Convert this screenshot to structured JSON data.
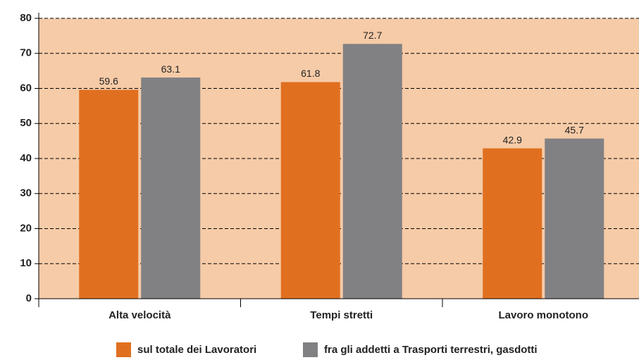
{
  "chart_data": {
    "type": "bar",
    "categories": [
      "Alta velocità",
      "Tempi stretti",
      "Lavoro monotono"
    ],
    "series": [
      {
        "name": "sul totale dei Lavoratori",
        "color": "#e07020",
        "values": [
          59.6,
          61.8,
          42.9
        ]
      },
      {
        "name": "fra gli addetti a Trasporti terrestri, gasdotti",
        "color": "#818184",
        "values": [
          63.1,
          72.7,
          45.7
        ]
      }
    ],
    "ylim": [
      0,
      80
    ],
    "yticks": [
      0,
      10,
      20,
      30,
      40,
      50,
      60,
      70,
      80
    ],
    "grid": true,
    "legend": "bottom",
    "background": "#f6cba7"
  }
}
